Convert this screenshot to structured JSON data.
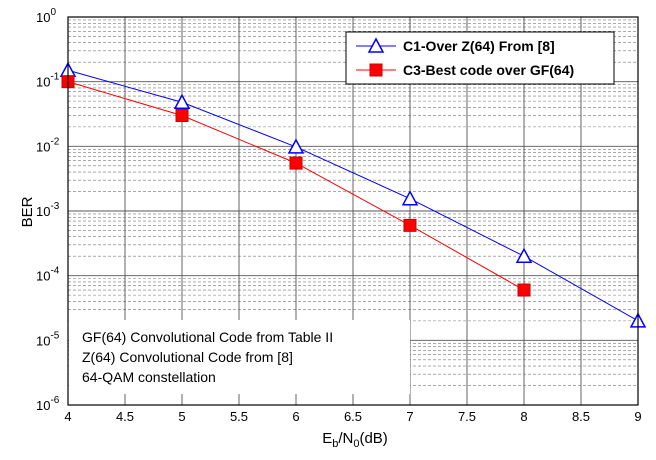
{
  "chart_data": {
    "type": "line",
    "xlabel_main": "E",
    "xlabel_sub1": "b",
    "xlabel_mid": "/N",
    "xlabel_sub2": "0",
    "xlabel_end": "(dB)",
    "ylabel": "BER",
    "xlim": [
      4,
      9
    ],
    "ylim_exp": [
      -6,
      0
    ],
    "y_scale": "log",
    "grid": true,
    "x_ticks": [
      "4",
      "4.5",
      "5",
      "5.5",
      "6",
      "6.5",
      "7",
      "7.5",
      "8",
      "8.5",
      "9"
    ],
    "y_tick_exponents": [
      "0",
      "-1",
      "-2",
      "-3",
      "-4",
      "-5",
      "-6"
    ],
    "legend_position": "top-right",
    "series": [
      {
        "name": "C1-Over Z(64) From [8]",
        "color": "#0000ff",
        "marker": "open-triangle",
        "x": [
          4,
          5,
          6,
          7,
          8,
          9
        ],
        "y": [
          0.15,
          0.048,
          0.0098,
          0.00155,
          0.0002,
          2e-05
        ]
      },
      {
        "name": "C3-Best code over GF(64)",
        "color": "#ff0000",
        "marker": "filled-square",
        "x": [
          4,
          5,
          6,
          7,
          8
        ],
        "y": [
          0.1,
          0.03,
          0.0055,
          0.0006,
          6e-05
        ]
      }
    ],
    "annotations": [
      "GF(64) Convolutional Code from Table II",
      "Z(64) Convolutional Code from [8]",
      "64-QAM constellation"
    ]
  }
}
